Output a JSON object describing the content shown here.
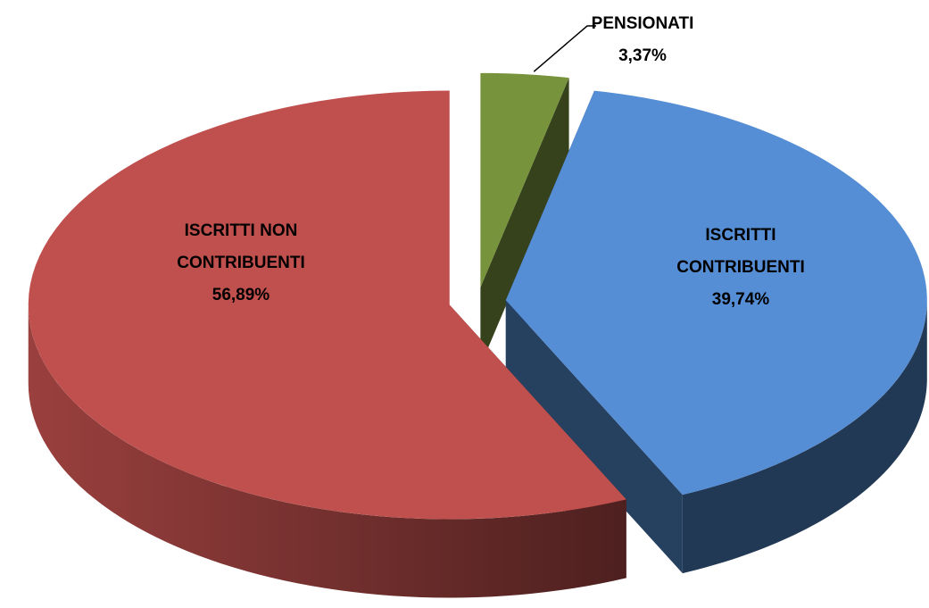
{
  "chart_data": {
    "type": "pie3d",
    "categories": [
      "PENSIONATI",
      "ISCRITTI CONTRIBUENTI",
      "ISCRITTI NON CONTRIBUENTI"
    ],
    "values": [
      3.37,
      39.74,
      56.89
    ],
    "value_labels": [
      "3,37%",
      "39,74%",
      "56,89%"
    ],
    "colors": [
      "#77933c",
      "#558ed5",
      "#c0504d"
    ]
  }
}
